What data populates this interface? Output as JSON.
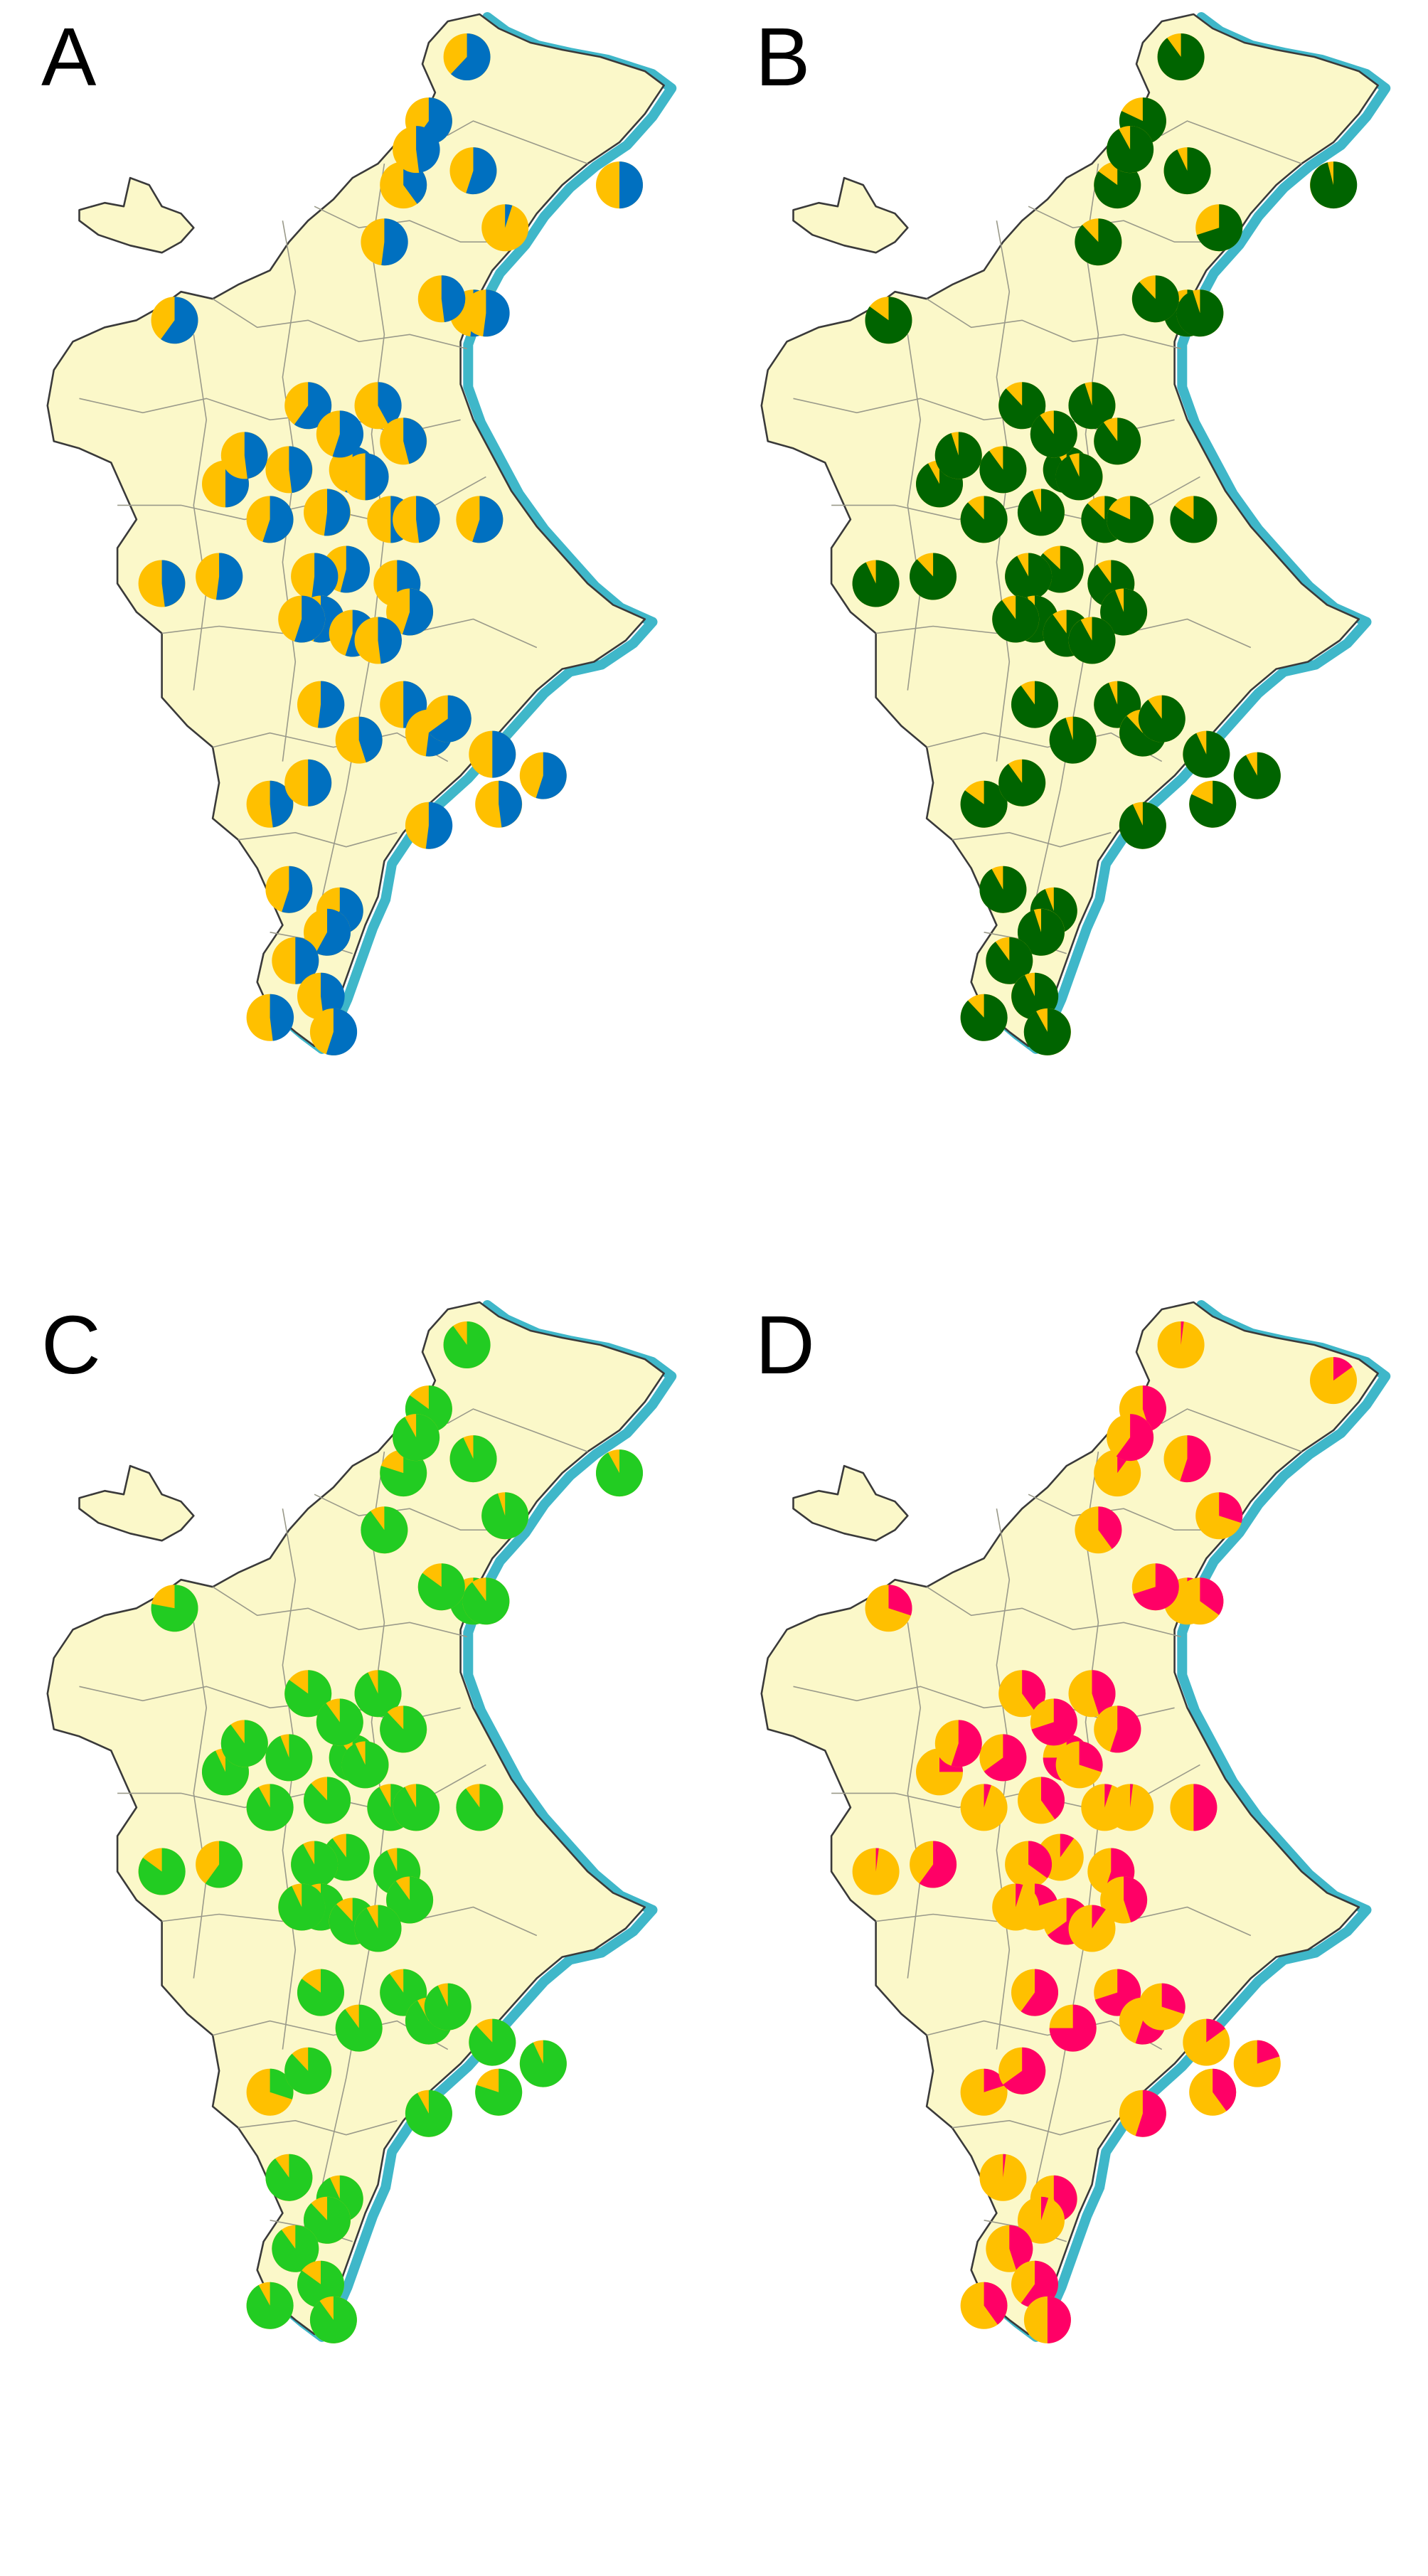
{
  "figure": {
    "map_fill": "#FBF8C9",
    "coast_shadow_color": "#3FB7C9",
    "panels": [
      {
        "letter": "A",
        "colors": [
          "#FFC000",
          "#0070C0"
        ],
        "pies": [
          [
            0.69,
            0.07,
            0.62
          ],
          [
            0.93,
            0.25,
            0.5
          ],
          [
            0.63,
            0.16,
            0.6
          ],
          [
            0.7,
            0.23,
            0.55
          ],
          [
            0.56,
            0.33,
            0.52
          ],
          [
            0.7,
            0.43,
            0.52
          ],
          [
            0.75,
            0.31,
            0.05
          ],
          [
            0.59,
            0.25,
            0.4
          ],
          [
            0.61,
            0.2,
            0.48
          ],
          [
            0.72,
            0.43,
            0.52
          ],
          [
            0.65,
            0.41,
            0.48
          ],
          [
            0.51,
            0.65,
            0.55
          ],
          [
            0.57,
            0.72,
            0.5
          ],
          [
            0.55,
            0.56,
            0.42
          ],
          [
            0.59,
            0.61,
            0.46
          ],
          [
            0.23,
            0.44,
            0.6
          ],
          [
            0.44,
            0.56,
            0.6
          ],
          [
            0.49,
            0.6,
            0.55
          ],
          [
            0.31,
            0.67,
            0.5
          ],
          [
            0.34,
            0.63,
            0.48
          ],
          [
            0.41,
            0.65,
            0.48
          ],
          [
            0.38,
            0.72,
            0.55
          ],
          [
            0.47,
            0.71,
            0.52
          ],
          [
            0.5,
            0.79,
            0.54
          ],
          [
            0.58,
            0.81,
            0.5
          ],
          [
            0.45,
            0.8,
            0.52
          ],
          [
            0.46,
            0.86,
            0.55
          ],
          [
            0.21,
            0.81,
            0.48
          ],
          [
            0.3,
            0.8,
            0.52
          ],
          [
            0.43,
            0.86,
            0.55
          ],
          [
            0.6,
            0.85,
            0.55
          ],
          [
            0.61,
            0.72,
            0.48
          ],
          [
            0.51,
            0.88,
            0.55
          ],
          [
            0.53,
            0.66,
            0.5
          ],
          [
            0.71,
            0.72,
            0.55
          ],
          [
            0.55,
            0.89,
            0.48
          ],
          [
            0.59,
            0.98,
            0.5
          ],
          [
            0.46,
            0.98,
            0.52
          ],
          [
            0.63,
            1.02,
            0.52
          ],
          [
            0.73,
            1.05,
            0.5
          ],
          [
            0.81,
            1.08,
            0.55
          ],
          [
            0.52,
            1.03,
            0.45
          ],
          [
            0.38,
            1.12,
            0.48
          ],
          [
            0.44,
            1.09,
            0.5
          ],
          [
            0.74,
            1.12,
            0.48
          ],
          [
            0.63,
            1.15,
            0.52
          ],
          [
            0.41,
            1.24,
            0.55
          ],
          [
            0.49,
            1.27,
            0.6
          ],
          [
            0.47,
            1.3,
            0.58
          ],
          [
            0.42,
            1.34,
            0.5
          ],
          [
            0.46,
            1.39,
            0.48
          ],
          [
            0.38,
            1.42,
            0.48
          ],
          [
            0.48,
            1.44,
            0.55
          ],
          [
            0.66,
            1.0,
            0.65
          ]
        ]
      },
      {
        "letter": "B",
        "colors": [
          "#FFC000",
          "#006400"
        ],
        "pies": [
          [
            0.69,
            0.07,
            0.9
          ],
          [
            0.93,
            0.25,
            0.96
          ],
          [
            0.63,
            0.16,
            0.82
          ],
          [
            0.7,
            0.23,
            0.93
          ],
          [
            0.56,
            0.33,
            0.88
          ],
          [
            0.7,
            0.43,
            0.9
          ],
          [
            0.75,
            0.31,
            0.7
          ],
          [
            0.59,
            0.25,
            0.85
          ],
          [
            0.61,
            0.2,
            0.92
          ],
          [
            0.72,
            0.43,
            0.95
          ],
          [
            0.65,
            0.41,
            0.88
          ],
          [
            0.51,
            0.65,
            0.92
          ],
          [
            0.57,
            0.72,
            0.87
          ],
          [
            0.55,
            0.56,
            0.95
          ],
          [
            0.59,
            0.61,
            0.9
          ],
          [
            0.23,
            0.44,
            0.85
          ],
          [
            0.44,
            0.56,
            0.88
          ],
          [
            0.49,
            0.6,
            0.9
          ],
          [
            0.31,
            0.67,
            0.92
          ],
          [
            0.34,
            0.63,
            0.95
          ],
          [
            0.41,
            0.65,
            0.9
          ],
          [
            0.38,
            0.72,
            0.88
          ],
          [
            0.47,
            0.71,
            0.94
          ],
          [
            0.5,
            0.79,
            0.87
          ],
          [
            0.58,
            0.81,
            0.9
          ],
          [
            0.45,
            0.8,
            0.92
          ],
          [
            0.46,
            0.86,
            0.95
          ],
          [
            0.21,
            0.81,
            0.93
          ],
          [
            0.3,
            0.8,
            0.88
          ],
          [
            0.43,
            0.86,
            0.9
          ],
          [
            0.6,
            0.85,
            0.94
          ],
          [
            0.61,
            0.72,
            0.82
          ],
          [
            0.51,
            0.88,
            0.9
          ],
          [
            0.53,
            0.66,
            0.93
          ],
          [
            0.71,
            0.72,
            0.85
          ],
          [
            0.55,
            0.89,
            0.92
          ],
          [
            0.59,
            0.98,
            0.94
          ],
          [
            0.46,
            0.98,
            0.9
          ],
          [
            0.63,
            1.02,
            0.88
          ],
          [
            0.73,
            1.05,
            0.93
          ],
          [
            0.81,
            1.08,
            0.92
          ],
          [
            0.52,
            1.03,
            0.95
          ],
          [
            0.38,
            1.12,
            0.85
          ],
          [
            0.44,
            1.09,
            0.9
          ],
          [
            0.74,
            1.12,
            0.82
          ],
          [
            0.63,
            1.15,
            0.93
          ],
          [
            0.41,
            1.24,
            0.92
          ],
          [
            0.49,
            1.27,
            0.94
          ],
          [
            0.47,
            1.3,
            0.95
          ],
          [
            0.42,
            1.34,
            0.9
          ],
          [
            0.46,
            1.39,
            0.93
          ],
          [
            0.38,
            1.42,
            0.88
          ],
          [
            0.48,
            1.44,
            0.92
          ],
          [
            0.66,
            1.0,
            0.9
          ]
        ]
      },
      {
        "letter": "C",
        "colors": [
          "#FFC000",
          "#22CC22"
        ],
        "pies": [
          [
            0.69,
            0.07,
            0.9
          ],
          [
            0.93,
            0.25,
            0.92
          ],
          [
            0.63,
            0.16,
            0.85
          ],
          [
            0.7,
            0.23,
            0.93
          ],
          [
            0.56,
            0.33,
            0.9
          ],
          [
            0.7,
            0.43,
            0.88
          ],
          [
            0.75,
            0.31,
            0.95
          ],
          [
            0.59,
            0.25,
            0.8
          ],
          [
            0.61,
            0.2,
            0.92
          ],
          [
            0.72,
            0.43,
            0.9
          ],
          [
            0.65,
            0.41,
            0.85
          ],
          [
            0.51,
            0.65,
            0.9
          ],
          [
            0.57,
            0.72,
            0.92
          ],
          [
            0.55,
            0.56,
            0.93
          ],
          [
            0.59,
            0.61,
            0.88
          ],
          [
            0.23,
            0.44,
            0.78
          ],
          [
            0.44,
            0.56,
            0.85
          ],
          [
            0.49,
            0.6,
            0.9
          ],
          [
            0.31,
            0.67,
            0.93
          ],
          [
            0.34,
            0.63,
            0.9
          ],
          [
            0.41,
            0.65,
            0.94
          ],
          [
            0.38,
            0.72,
            0.92
          ],
          [
            0.47,
            0.71,
            0.88
          ],
          [
            0.5,
            0.79,
            0.9
          ],
          [
            0.58,
            0.81,
            0.93
          ],
          [
            0.45,
            0.8,
            0.92
          ],
          [
            0.46,
            0.86,
            0.9
          ],
          [
            0.21,
            0.81,
            0.85
          ],
          [
            0.3,
            0.8,
            0.6
          ],
          [
            0.43,
            0.86,
            0.93
          ],
          [
            0.6,
            0.85,
            0.9
          ],
          [
            0.61,
            0.72,
            0.92
          ],
          [
            0.51,
            0.88,
            0.88
          ],
          [
            0.53,
            0.66,
            0.93
          ],
          [
            0.71,
            0.72,
            0.9
          ],
          [
            0.55,
            0.89,
            0.92
          ],
          [
            0.59,
            0.98,
            0.9
          ],
          [
            0.46,
            0.98,
            0.85
          ],
          [
            0.63,
            1.02,
            0.92
          ],
          [
            0.73,
            1.05,
            0.88
          ],
          [
            0.81,
            1.08,
            0.93
          ],
          [
            0.52,
            1.03,
            0.9
          ],
          [
            0.38,
            1.12,
            0.3
          ],
          [
            0.44,
            1.09,
            0.88
          ],
          [
            0.74,
            1.12,
            0.8
          ],
          [
            0.63,
            1.15,
            0.92
          ],
          [
            0.41,
            1.24,
            0.9
          ],
          [
            0.49,
            1.27,
            0.93
          ],
          [
            0.47,
            1.3,
            0.88
          ],
          [
            0.42,
            1.34,
            0.9
          ],
          [
            0.46,
            1.39,
            0.85
          ],
          [
            0.38,
            1.42,
            0.92
          ],
          [
            0.48,
            1.44,
            0.9
          ],
          [
            0.66,
            1.0,
            0.93
          ]
        ]
      },
      {
        "letter": "D",
        "colors": [
          "#FFC000",
          "#FF0066"
        ],
        "pies": [
          [
            0.69,
            0.07,
            0.02
          ],
          [
            0.93,
            0.12,
            0.15
          ],
          [
            0.63,
            0.16,
            0.45
          ],
          [
            0.7,
            0.23,
            0.55
          ],
          [
            0.56,
            0.33,
            0.4
          ],
          [
            0.7,
            0.43,
            0.05
          ],
          [
            0.75,
            0.31,
            0.3
          ],
          [
            0.59,
            0.25,
            0.1
          ],
          [
            0.61,
            0.2,
            0.6
          ],
          [
            0.72,
            0.43,
            0.35
          ],
          [
            0.65,
            0.41,
            0.7
          ],
          [
            0.51,
            0.65,
            0.75
          ],
          [
            0.57,
            0.72,
            0.05
          ],
          [
            0.55,
            0.56,
            0.45
          ],
          [
            0.59,
            0.61,
            0.55
          ],
          [
            0.23,
            0.44,
            0.3
          ],
          [
            0.44,
            0.56,
            0.4
          ],
          [
            0.49,
            0.6,
            0.7
          ],
          [
            0.31,
            0.67,
            0.25
          ],
          [
            0.34,
            0.63,
            0.55
          ],
          [
            0.41,
            0.65,
            0.65
          ],
          [
            0.38,
            0.72,
            0.05
          ],
          [
            0.47,
            0.71,
            0.4
          ],
          [
            0.5,
            0.79,
            0.1
          ],
          [
            0.58,
            0.81,
            0.55
          ],
          [
            0.45,
            0.8,
            0.35
          ],
          [
            0.46,
            0.86,
            0.2
          ],
          [
            0.21,
            0.81,
            0.02
          ],
          [
            0.3,
            0.8,
            0.6
          ],
          [
            0.43,
            0.86,
            0.05
          ],
          [
            0.6,
            0.85,
            0.45
          ],
          [
            0.61,
            0.72,
            0.02
          ],
          [
            0.51,
            0.88,
            0.65
          ],
          [
            0.53,
            0.66,
            0.3
          ],
          [
            0.71,
            0.72,
            0.5
          ],
          [
            0.55,
            0.89,
            0.1
          ],
          [
            0.59,
            0.98,
            0.7
          ],
          [
            0.46,
            0.98,
            0.6
          ],
          [
            0.63,
            1.02,
            0.55
          ],
          [
            0.73,
            1.05,
            0.15
          ],
          [
            0.81,
            1.08,
            0.2
          ],
          [
            0.52,
            1.03,
            0.75
          ],
          [
            0.38,
            1.12,
            0.2
          ],
          [
            0.44,
            1.09,
            0.65
          ],
          [
            0.74,
            1.12,
            0.4
          ],
          [
            0.63,
            1.15,
            0.55
          ],
          [
            0.41,
            1.24,
            0.02
          ],
          [
            0.49,
            1.27,
            0.45
          ],
          [
            0.47,
            1.3,
            0.05
          ],
          [
            0.42,
            1.34,
            0.45
          ],
          [
            0.46,
            1.39,
            0.6
          ],
          [
            0.38,
            1.42,
            0.4
          ],
          [
            0.48,
            1.44,
            0.5
          ],
          [
            0.66,
            1.0,
            0.3
          ]
        ]
      }
    ]
  }
}
